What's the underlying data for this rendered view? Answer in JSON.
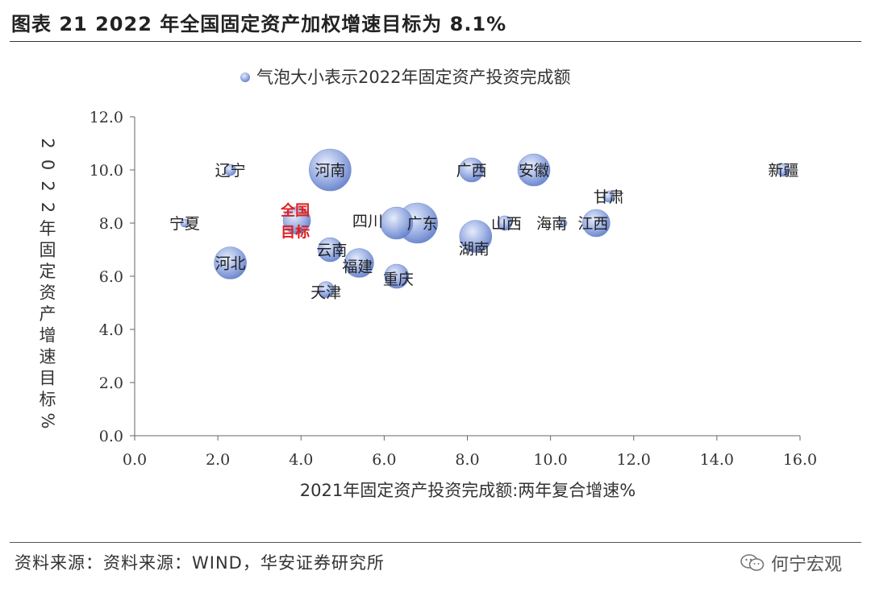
{
  "header": {
    "title": "图表 21 2022 年全国固定资产加权增速目标为 8.1%"
  },
  "footer": {
    "source": "资料来源：资料来源：WIND，华安证券研究所",
    "brand": "何宁宏观",
    "brand_icon": "wechat-icon"
  },
  "chart_data": {
    "type": "scatter",
    "subtype": "bubble",
    "xlabel": "2021年固定资产投资完成额:两年复合增速%",
    "ylabel": "2022年固定资产增速目标%",
    "legend": {
      "label": "气泡大小表示2022年固定资产投资完成额",
      "position": "top"
    },
    "xlim": [
      0,
      16
    ],
    "ylim": [
      0,
      12
    ],
    "xticks": [
      "0.0",
      "2.0",
      "4.0",
      "6.0",
      "8.0",
      "10.0",
      "12.0",
      "14.0",
      "16.0"
    ],
    "yticks": [
      "0.0",
      "2.0",
      "4.0",
      "6.0",
      "8.0",
      "10.0",
      "12.0"
    ],
    "grid": false,
    "bubble_color": "#7f97d6",
    "target_color": "#e02020",
    "points": [
      {
        "name": "辽宁",
        "x": 2.3,
        "y": 10.0,
        "size": 7
      },
      {
        "name": "河南",
        "x": 4.7,
        "y": 10.0,
        "size": 26
      },
      {
        "name": "广西",
        "x": 8.1,
        "y": 10.0,
        "size": 15
      },
      {
        "name": "安徽",
        "x": 9.6,
        "y": 10.0,
        "size": 20
      },
      {
        "name": "新疆",
        "x": 15.6,
        "y": 10.0,
        "size": 8
      },
      {
        "name": "甘肃",
        "x": 11.4,
        "y": 9.0,
        "size": 7
      },
      {
        "name": "宁夏",
        "x": 1.2,
        "y": 8.0,
        "size": 5
      },
      {
        "name": "全国目标",
        "x": 3.9,
        "y": 8.1,
        "size": 17,
        "target": true
      },
      {
        "name": "四川",
        "x": 6.3,
        "y": 8.0,
        "size": 20
      },
      {
        "name": "广东",
        "x": 6.8,
        "y": 8.0,
        "size": 25
      },
      {
        "name": "山西",
        "x": 8.9,
        "y": 8.0,
        "size": 9
      },
      {
        "name": "海南",
        "x": 10.3,
        "y": 8.0,
        "size": 5
      },
      {
        "name": "江西",
        "x": 11.1,
        "y": 8.0,
        "size": 17
      },
      {
        "name": "湖南",
        "x": 8.2,
        "y": 7.5,
        "size": 20
      },
      {
        "name": "云南",
        "x": 4.7,
        "y": 7.0,
        "size": 15
      },
      {
        "name": "福建",
        "x": 5.4,
        "y": 6.5,
        "size": 18
      },
      {
        "name": "河北",
        "x": 2.3,
        "y": 6.5,
        "size": 20
      },
      {
        "name": "重庆",
        "x": 6.3,
        "y": 6.0,
        "size": 15
      },
      {
        "name": "天津",
        "x": 4.6,
        "y": 5.5,
        "size": 10
      }
    ]
  }
}
